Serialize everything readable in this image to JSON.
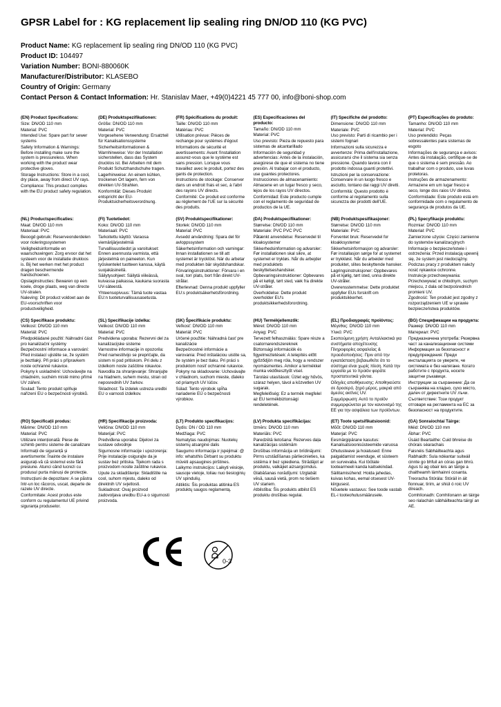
{
  "title": "GPSR Label for : KG replacement lip sealing ring DN/OD 110 (KG PVC)",
  "meta": {
    "productNameLabel": "Product Name:",
    "productName": "KG replacement lip sealing ring DN/OD 110 (KG PVC)",
    "productIdLabel": "Product ID:",
    "productId": "104497",
    "variationNumberLabel": "Variation Number:",
    "variationNumber": "BONI-880060K",
    "manufacturerLabel": "Manufacturer/Distributor:",
    "manufacturer": "KLASEBO",
    "countryLabel": "Country of Origin:",
    "country": "Germany",
    "contactLabel": "Contact Person & Contact Information:",
    "contact": "Hr. Stanislav Maer, +49(0)4221 45 777 00, info@boni-shop.com"
  },
  "footer": {
    "ce": "CE",
    "age": "0-3"
  },
  "colors": {
    "text": "#000000",
    "background": "#ffffff"
  },
  "langs": [
    {
      "title": "(EN) Product Specifications:",
      "lines": [
        "Size: DN/OD 110 mm",
        "Material: PVC",
        "Intended Use: Spare part for sewer systems",
        "Safety Information & Warnings: Before installing make sure the system is pressureless. When working with the product wear protective gloves.",
        "Storage Instructions: Store in a cool, dry place, away from direct UV rays.",
        "Compliance: This product complies with the EU product safety regulation."
      ]
    },
    {
      "title": "(DE) Produktspezifikationen:",
      "lines": [
        "Größe: DN/OD 110 mm",
        "Material: PVC",
        "Vorgesehene Verwendung: Ersatzteil für Kanalisationssysteme",
        "Sicherheitsinformationen & Warnhinweise: Vor der Installation sicherstellen, dass das System drucklos ist. Bei Arbeiten mit dem Produkt Schutzhandschuhe tragen.",
        "Lagerhinweise: An einem kühlen, trockenen Ort lagern, fern von direkten UV-Strahlen.",
        "Konformität: Dieses Produkt entspricht der EU-Produktsicherheitsverordnung."
      ]
    },
    {
      "title": "(FR) Spécifications du produit:",
      "lines": [
        "Taille: DN/OD 110 mm",
        "Matériau: PVC",
        "Utilisation prévue: Pièces de rechange pour systèmes d'égout",
        "Informations de sécurité et avertissements: Avant l'installation assurez-vous que le système est sans pression. Lorsque vous travaillez avec le produit, portez des gants de protection.",
        "Instructions de stockage: Conserver dans un endroit frais et sec, à l'abri des rayons UV directs.",
        "Conformité: Ce produit est conforme au règlement de l'UE sur la sécurité des produits."
      ]
    },
    {
      "title": "(ES) Especificaciones del producto:",
      "lines": [
        "Tamaño: DN/OD 110 mm",
        "Material: PVC",
        "Uso previsto: Pieza de repuesto para sistemas de alcantarillado",
        "Información de seguridad y advertencias: Antes de la instalación, asegúrese de que el sistema no tiene presión. Al trabajar con el producto, use guantes protectores.",
        "Instrucciones de almacenamiento: Almacene en un lugar fresco y seco, lejos de los rayos UV directos.",
        "Conformidad: Este producto cumple con el reglamento de seguridad de productos de la UE."
      ]
    },
    {
      "title": "(IT) Specifiche del prodotto:",
      "lines": [
        "Dimensione: DN/OD 110 mm",
        "Materiale: PVC",
        "Uso previsto: Parti di ricambio per i sistemi fognari",
        "Informazioni sulla sicurezza e avvertenze: Prima dell'installazione, assicurarsi che il sistema sia senza pressione. Quando lavora con il prodotto indossa guanti protettivi.",
        "Istruzioni per la conservazione: Conservare in un luogo fresco e asciutto, lontano dai raggi UV diretti.",
        "Conformità: Questo prodotto è conforme al regolamento sulla sicurezza dei prodotti dell'UE."
      ]
    },
    {
      "title": "(PT) Especificações do produto:",
      "lines": [
        "Tamanho: DN/OD 110 mm",
        "Material: PVC",
        "Uso pretendido: Peças sobressalentes para sistemas de esgoto",
        "Informações de segurança e avisos: Antes da instalação, certifique-se de que o sistema é sem pressão. Ao trabalhar com o produto, use luvas protetoras.",
        "Instruções de armazenamento: Armazene em um lugar fresco e seco, longe dos raios UV diretos.",
        "Conformidade: Este produto está em conformidade com o regulamento de segurança de produtos da UE."
      ]
    },
    {
      "title": "(NL) Productspecificaties:",
      "lines": [
        "Maat: DN/OD 110 mm",
        "Materiaal: PVC",
        "Beoogd gebruik: Reserveonderdelen voor rioleringssystemen",
        "Veiligheidsinformatie en waarschuwingen: Zorg ervoor dat het systeem voor de installatie drukloos is. Bij het werken met het product dragen beschermende handschoenen.",
        "Opslaginstructies: Bewaren op een koele, droge plaats, weg van directe UV-stralen.",
        "Naleving: Dit product voldoet aan de EU-voorschriften voor productveiligheid."
      ]
    },
    {
      "title": "(FI) Tuotetiedot:",
      "lines": [
        "Koko: DN/OD 110 mm",
        "Materiaali: PVC",
        "Tarkoitettu käyttö: Varaosa viemärijärjestelmiä",
        "Turvallisuustiedot ja varoitukset: Ennen asennusta varmista, että järjestelmä on paineeton. Kun työskentelet tuotteen kanssa, käytä suojakäsineitä.",
        "Säilytysohjeet: Säilytä viileässä, kuivassa paikassa, kaukana suorasta UV-säteestä.",
        "Yhteensopivuus: Tämä tuote vastaa EU:n tuoteturvallisuusasetusta."
      ]
    },
    {
      "title": "(SV) Produktspecifikationer:",
      "lines": [
        "Storlek: DN/OD 110 mm",
        "Material: PVC",
        "Avsedd användning: Spara del för avloppssystem",
        "Säkerhetsinformation och varningar: Innan installationen se till att systemet är trycklöst. När du arbetar med produkten bär skyddshandskar.",
        "Förvaringsinstruktioner: Förvara i en sval, torr plats, bort från direkt UV-strålar.",
        "Efterlevnad: Denna produkt uppfyller EU:s produktsäkerhetsförordning."
      ]
    },
    {
      "title": "(DA) Produktspecifikationer:",
      "lines": [
        "Størrelse: DN/OD 110 mm",
        "Materiale: PVC PVC PVC",
        "Påtænkt anvendelse: Reservedel til kloaksystemer",
        "Sikkerhedsinformation og advarsler: Før installationen skal sikre, at systemet er trykløs. Når du arbejder med produktets beskyttelseshandsker.",
        "Opbevaringsinstruktioner: Opbevares på et køligt, tørt sted, væk fra direkte UV-stråler.",
        "Overholdelse: Dette produkt overholder EU's produktsikkerhedsforordning."
      ]
    },
    {
      "title": "(NB) Produktspesifikasjoner:",
      "lines": [
        "Størrelse: DN/OD 110 mm",
        "Materiale: PVC",
        "Forventet bruk: Reservedel for kloakksystemer",
        "Sikkerhetsinformasjon og advarsler: Før installasjon sørge for at systemet er trykkløst. Når du arbeider med produktet, slites beskyttende hansker.",
        "Lagringsinstruksjoner: Oppbevares på et kjølig, tørt sted, unna direkte UV-stråler.",
        "Overensstemmelse: Dette produktet oppfyller EUs forskrift om produktsikkerhet."
      ]
    },
    {
      "title": "(PL) Specyfikacje produktu:",
      "lines": [
        "Rozmiar: DN/OD 110 mm",
        "Materiał: PVC",
        "Zamierzone użycie: Części zamienne do systemów kanalizacyjnych",
        "Informacje o bezpieczeństwie i ostrzeżenia: Przed instalacją upewnij się, że system jest niedociążny. Podczas pracy z produktem należy nosić rękawice ochronne.",
        "Instrukcje przechowywania: Przechowywać w chłodnym, suchym miejscu, z dala od bezpośrednich promieni UV.",
        "Zgodność: Ten produkt jest zgodny z rozporządzeniem UE w sprawie bezpieczeństwa produktów."
      ]
    },
    {
      "title": "(CS) Specifikace produktu:",
      "lines": [
        "Velikost: DN/OD 110 mm",
        "Materiál: PVC",
        "Předpokládané použití: Náhradní část pro kanalizační systémy",
        "Bezpečnostní informace a varování: Před instalací ujistěte se, že systém je beztlaký. Při práci s přípravkem noste ochranné rukavice.",
        "Pokyny k uskladnění: Uchovávejte na chladném, suchém místě mimo přímé UV záření.",
        "Soulad: Tento produkt splňuje nařízení EU o bezpečnosti výrobků."
      ]
    },
    {
      "title": "(SL) Specifikacije izdelka:",
      "lines": [
        "Velikost: DN/OD 110 mm",
        "Material: PVC",
        "Predvidena uporaba: Rezervni del za kanalizacijske sisteme",
        "Varnostne informacije in opozorila: Pred namestitvijo se prepričajte, da sistem ni pod pritiskom. Pri delu z izdelkom noste zaščitne rokavice.",
        "Navodila za shranjevanje: Shranjujte na hladnem, suhem mestu, stran od neposrednih UV žarkov.",
        "Skladnost: Ta izdelek ustreza uredbi EU o varnosti izdelkov."
      ]
    },
    {
      "title": "(SK) Špecifikácie produktu:",
      "lines": [
        "Veľkosť: DN/OD 110 mm",
        "Materiál: PVC",
        "Určené použitie: Náhradná časť pre kanalizácie",
        "Bezpečnostné informácie a varovania: Pred inštaláciou uistite sa, že systém je bez tlaku. Pri práci s produktom nosiť ochranné rukavice.",
        "Pokyny na skladovanie: Uchovávajte v chladnom, suchom mieste, ďaleko od priamych UV lúčov.",
        "Súlad: Tento výrobok spĺňa nariadenie EÚ o bezpečnosti výrobkov."
      ]
    },
    {
      "title": "(HU) Termékjellemzők:",
      "lines": [
        "Méret: DN/OD 110 mm",
        "Anyag: PVC",
        "Tervezett felhasználás: Spare része a csatornarendszereknek",
        "Biztonsági információk és figyelmeztetések: A telepítés előtt győződjön meg róla, hogy a rendszer nyomásmentes. Amikor a termékkel munka védőkesztyűt visel.",
        "Tárolási utasítások: Üzlet egy hűvös, száraz helyen, távol a közvetlen UV sugarak.",
        "Megfelelőség: Ez a termék megfelel az EU termékbiztonsági rendeletének."
      ]
    },
    {
      "title": "(EL) Προδιαγραφές προϊόντος:",
      "lines": [
        "Μέγεθος: DN/OD 110 mm",
        "Υλικό: PVC",
        "Σκοπούμενη χρήση: Ανταλλακτικά για συστήματα αποχέτευσης",
        "Πληροφορίες ασφαλείας & προειδοποιήσεις: Πριν από την εγκατάσταση βεβαιωθείτε ότι το σύστημα είναι χωρίς πίεση. Κατά την εργασία με το προϊόν φοράτε προστατευτικά γάντια.",
        "Οδηγίες αποθήκευσης: Αποθηκεύστε σε δροσερό, ξηρό μέρος, μακριά από άμεσες ακτίνες UV.",
        "Συμμόρφωση: Αυτό το προϊόν συμμορφώνεται με τον κανονισμό της ΕΕ για την ασφάλεια των προϊόντων."
      ]
    },
    {
      "title": "(BG) Спецификации на продукта:",
      "lines": [
        "Размер: DN/OD 110 mm",
        "Материал: PVC",
        "Предназначена употреба: Резервна част за канализационни системи",
        "Информация за безопасност и предупреждения: Преди инсталацията се уверете, че системата е без налягане. Когато работите с продукта, носете защитни ръкавици.",
        "Инструкции за съхранение: Да се съхранява на хладно, сухо място, далеч от директните UV лъчи.",
        "Съответствие: Този продукт отговаря на регламента на ЕС за безопасност на продуктите."
      ]
    },
    {
      "title": "(RO) Specificații produs:",
      "lines": [
        "Mărime: DN/OD 110 mm",
        "Material: PVC",
        "Utilizare intenționată: Piese de schimb pentru sisteme de canalizare",
        "Informații de siguranță și avertismente: Înainte de instalare asigurați-vă că sistemul este fără presiune. Atunci când lucrezi cu produsul purta mânuși de protecție.",
        "Instrucțiuni de depozitare: A se păstra într-un loc răcoros, uscat, departe de razele UV directe.",
        "Conformitate: Acest produs este conform cu regulamentul UE privind siguranța produselor."
      ]
    },
    {
      "title": "(HR) Specifikacije proizvoda:",
      "lines": [
        "Veličina: DN/OD 110 mm",
        "Materijal: PVC",
        "Predviđena uporaba: Dijelovi za sustave odvodnje",
        "Sigurnosne informacije i upozorenja: Prije instalacije osigurajte da je sustav bez pritiska. Tijekom rada s proizvodom nosite zaštitne rukavice.",
        "Upute za skladištenje: Skladištite na cool, suhom mjestu, daleko od direktnih UV svjetlosti.",
        "Sukladnost: Ovaj proizvod zadovoljava uredbu EU-a o sigurnosti proizvoda."
      ]
    },
    {
      "title": "(LT) Produkto specifikacijos:",
      "lines": [
        "Dydis: DN / OD 110 mm",
        "Medžiaga: PVC",
        "Numatytas naudojimas: Nuotekų sistemų atsarginė dalis",
        "Saugumo informacija ir įspėjimai: @ info: whatsthis Dirbant su produktu mūvėti apsaugines pirštines.",
        "Laikymo instrukcijos: Laikyti vėsioje, sausoje vietoje, toliau nuo tiesioginių UV spindulių.",
        "Atitiktis: Šis produktas atitinka ES produktų saugos reglamentą."
      ]
    },
    {
      "title": "(LV) Produkta specifikācijas:",
      "lines": [
        "Izmērs: DN/OD 110 mm",
        "Materiāls: PVC",
        "Paredzētā lietošana: Rezerves daļa kanalizācijas sistēmām",
        "Drošības informācija un brīdinājumi: Pirms uzstādīšanas pārliecinieties, ka sistēma ir bez spiediena. Strādājot ar produktu, valkājiet aizsargcimdus.",
        "Glabāšanas norādījumi: Uzglabāt vēsā, sausā vietā, prom no tiešiem UV stariem.",
        "Atbilstība: Šis produkts atbilst ES produktu drošības regulai."
      ]
    },
    {
      "title": "(ET) Toote spetsifikatsioonid:",
      "lines": [
        "Mõõt: DN/OD 110 mm",
        "Materjal: PVC",
        "Eesmärgipärane kasutus: Kanalisatsioonisüsteemide varuosa",
        "Ohutusteave ja hoiatused: Enne paigaldamist veenduge, et süsteem on survevaba. Kui töötate tootearmeeli kanda kaitsekindad.",
        "Säilitamisühend: Hoida jahedas, kuivas kohas, eemal otsesest UV-kiirgusest.",
        "Nõuetele vastavus: See toode vastab EL-i tooteohutusmäärusele."
      ]
    },
    {
      "title": "(GA) Sonraíochtaí Táirge:",
      "lines": [
        "Méid: DN/OD 110 mm",
        "Ábhar: PVC",
        "Úsáid Beartaithe: Cuid bhreise do chórais séarachais",
        "Faisnéis Sábháilteachta agus Rabhaidh: Sula ndéantar suiteáil cinnte go bhfuil an córas gan bhrú. Agus tú ag obair leis an táirge a chaitheamh lámhainní cosanta.",
        "Treoracha Stórála: Stóráil in áit fionnuar, tirim, ar shiúl ó roic UV díreach.",
        "Comhlíonadh: Comhlíonann an táirge seo rialachán sábháilteachta táirgí an AE."
      ]
    }
  ]
}
